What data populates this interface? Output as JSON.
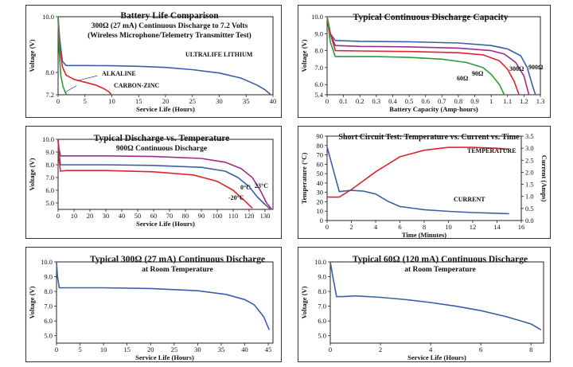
{
  "colors": {
    "blue": "#3a5fa8",
    "red": "#e0232c",
    "green": "#2f9a3a",
    "magenta": "#9b2c8c",
    "axis": "#222222"
  },
  "chart_data": [
    {
      "type": "line",
      "title": "Battery Life Comparison",
      "subtitle": "300Ω (27 mA) Continuous Discharge to 7.2 Volts",
      "subtitle2": "(Wireless Microphone/Telemetry Transmitter Test)",
      "xlabel": "Service Life (Hours)",
      "ylabel": "Voltage (V)",
      "xlim": [
        0,
        40
      ],
      "ylim": [
        7.2,
        10.0
      ],
      "xticks": [
        0,
        5,
        10,
        15,
        20,
        25,
        30,
        35,
        40
      ],
      "yticks": [
        7.2,
        8.0,
        10.0
      ],
      "series": [
        {
          "name": "ULTRALIFE LITHIUM",
          "color": "blue",
          "x": [
            0,
            0.3,
            0.8,
            1.5,
            5,
            10,
            15,
            20,
            25,
            30,
            34,
            37,
            38.5,
            39.5
          ],
          "y": [
            10.0,
            9.2,
            8.4,
            8.25,
            8.25,
            8.24,
            8.22,
            8.18,
            8.1,
            7.98,
            7.8,
            7.55,
            7.38,
            7.22
          ]
        },
        {
          "name": "ALKALINE",
          "color": "red",
          "x": [
            0,
            0.3,
            0.8,
            1.5,
            3,
            5,
            7,
            8.5,
            9.5,
            9.9
          ],
          "y": [
            9.9,
            8.9,
            8.2,
            7.9,
            7.75,
            7.65,
            7.55,
            7.42,
            7.3,
            7.2
          ]
        },
        {
          "name": "CARBON-ZINC",
          "color": "green",
          "x": [
            0,
            0.2,
            0.5,
            0.9,
            1.3,
            1.6
          ],
          "y": [
            10.0,
            8.7,
            7.9,
            7.5,
            7.3,
            7.2
          ]
        }
      ]
    },
    {
      "type": "line",
      "title": "Typical Continuous Discharge Capacity",
      "xlabel": "Battery Capacity (Amp-hours)",
      "ylabel": "Voltage (V)",
      "xlim": [
        0,
        1.3
      ],
      "ylim": [
        5.4,
        10.0
      ],
      "xticks": [
        0,
        0.1,
        0.2,
        0.3,
        0.4,
        0.5,
        0.6,
        0.7,
        0.8,
        0.9,
        1.0,
        1.1,
        1.2,
        1.3
      ],
      "yticks": [
        5.4,
        6.0,
        7.0,
        8.0,
        9.0,
        10.0
      ],
      "series": [
        {
          "name": "900Ω",
          "color": "blue",
          "x": [
            0,
            0.02,
            0.05,
            0.2,
            0.5,
            0.8,
            1.0,
            1.1,
            1.18,
            1.22,
            1.25,
            1.27
          ],
          "y": [
            10.0,
            9.0,
            8.6,
            8.55,
            8.52,
            8.45,
            8.3,
            8.1,
            7.7,
            7.0,
            6.0,
            5.4
          ]
        },
        {
          "name": "300Ω",
          "color": "magenta",
          "x": [
            0,
            0.02,
            0.05,
            0.2,
            0.5,
            0.8,
            1.0,
            1.08,
            1.15,
            1.2,
            1.23
          ],
          "y": [
            10.0,
            9.0,
            8.3,
            8.25,
            8.22,
            8.15,
            8.0,
            7.8,
            7.3,
            6.5,
            5.4
          ]
        },
        {
          "name": "90Ω",
          "color": "red",
          "x": [
            0,
            0.02,
            0.05,
            0.2,
            0.5,
            0.8,
            0.95,
            1.05,
            1.1,
            1.14,
            1.17
          ],
          "y": [
            10.0,
            9.0,
            8.0,
            7.98,
            7.95,
            7.88,
            7.75,
            7.4,
            6.9,
            6.2,
            5.4
          ]
        },
        {
          "name": "60Ω",
          "color": "green",
          "x": [
            0,
            0.02,
            0.05,
            0.3,
            0.5,
            0.7,
            0.85,
            0.95,
            1.0,
            1.05,
            1.08
          ],
          "y": [
            10.0,
            8.5,
            7.65,
            7.65,
            7.6,
            7.5,
            7.3,
            7.0,
            6.6,
            6.0,
            5.4
          ]
        }
      ]
    },
    {
      "type": "line",
      "title": "Typical Discharge vs. Temperature",
      "subtitle": "900Ω Continuous Discharge",
      "xlabel": "Service Life (Hours)",
      "ylabel": "Voltage (V)",
      "xlim": [
        0,
        135
      ],
      "ylim": [
        4.5,
        10.0
      ],
      "xticks": [
        0,
        10,
        20,
        30,
        40,
        50,
        60,
        70,
        80,
        90,
        100,
        110,
        120,
        130
      ],
      "yticks": [
        5.0,
        6.0,
        7.0,
        8.0,
        9.0,
        10.0
      ],
      "series": [
        {
          "name": "23°C",
          "color": "magenta",
          "x": [
            0,
            0.5,
            1.5,
            5,
            30,
            60,
            90,
            105,
            115,
            122,
            127,
            131,
            134
          ],
          "y": [
            10.0,
            9.3,
            8.7,
            8.7,
            8.7,
            8.65,
            8.5,
            8.2,
            7.7,
            7.0,
            6.0,
            5.0,
            4.55
          ]
        },
        {
          "name": "0°C",
          "color": "blue",
          "x": [
            0,
            0.5,
            1.5,
            5,
            30,
            60,
            90,
            105,
            113,
            120,
            125,
            129,
            133
          ],
          "y": [
            10.0,
            9.0,
            8.0,
            8.0,
            8.0,
            7.95,
            7.8,
            7.5,
            7.0,
            6.3,
            5.5,
            5.0,
            4.55
          ]
        },
        {
          "name": "-20°C",
          "color": "red",
          "x": [
            0,
            0.5,
            1.5,
            5,
            30,
            60,
            85,
            100,
            110,
            117,
            122
          ],
          "y": [
            10.0,
            8.5,
            7.5,
            7.55,
            7.55,
            7.45,
            7.2,
            6.7,
            6.0,
            5.2,
            4.6
          ]
        }
      ]
    },
    {
      "type": "line",
      "title": "Short Circuit Test: Temperature vs. Current vs. Time",
      "xlabel": "Time (Minutes)",
      "ylabel": "Temperature (°C)",
      "ylabel2": "Current (Amps)",
      "xlim": [
        0,
        16
      ],
      "ylim": [
        0,
        90
      ],
      "y2lim": [
        0,
        3.5
      ],
      "xticks": [
        0,
        2,
        4,
        6,
        8,
        10,
        12,
        14,
        16
      ],
      "yticks": [
        0,
        10,
        20,
        30,
        40,
        50,
        60,
        70,
        80,
        90
      ],
      "y2ticks": [
        0,
        0.5,
        1.0,
        1.5,
        2.0,
        2.5,
        3.0,
        3.5
      ],
      "series": [
        {
          "name": "TEMPERATURE",
          "color": "red",
          "axis": "left",
          "x": [
            0,
            1,
            2,
            4,
            6,
            8,
            10,
            12,
            14,
            15
          ],
          "y": [
            25,
            25,
            33,
            52,
            68,
            75,
            78,
            78,
            77,
            76
          ]
        },
        {
          "name": "CURRENT",
          "color": "blue",
          "axis": "right",
          "x": [
            0,
            1,
            2,
            3,
            4,
            5,
            6,
            8,
            10,
            12,
            14,
            15
          ],
          "y": [
            3.05,
            1.2,
            1.25,
            1.22,
            1.1,
            0.8,
            0.58,
            0.45,
            0.38,
            0.33,
            0.3,
            0.28
          ]
        }
      ]
    },
    {
      "type": "line",
      "title": "Typical 300Ω (27 mA) Continuous Discharge",
      "subtitle": "at Room Temperature",
      "xlabel": "Service Life (Hours)",
      "ylabel": "Voltage (V)",
      "xlim": [
        0,
        46
      ],
      "ylim": [
        4.5,
        10.0
      ],
      "xticks": [
        0,
        5,
        10,
        15,
        20,
        25,
        30,
        35,
        40,
        45
      ],
      "yticks": [
        5.0,
        6.0,
        7.0,
        8.0,
        9.0,
        10.0
      ],
      "series": [
        {
          "name": "",
          "color": "blue",
          "x": [
            0,
            0.2,
            0.6,
            2,
            10,
            20,
            30,
            36,
            40,
            42,
            44,
            45.2
          ],
          "y": [
            10.0,
            9.0,
            8.25,
            8.25,
            8.25,
            8.2,
            8.05,
            7.8,
            7.45,
            7.1,
            6.3,
            5.4
          ]
        }
      ]
    },
    {
      "type": "line",
      "title": "Typical 60Ω (120 mA) Continuous Discharge",
      "subtitle": "at Room Temperature",
      "xlabel": "Service Life (Hours)",
      "ylabel": "Voltage (V)",
      "xlim": [
        0,
        8.5
      ],
      "ylim": [
        4.5,
        10.0
      ],
      "xticks": [
        0,
        2,
        4,
        6,
        8
      ],
      "yticks": [
        5.0,
        6.0,
        7.0,
        8.0,
        9.0,
        10.0
      ],
      "series": [
        {
          "name": "",
          "color": "blue",
          "x": [
            0,
            0.1,
            0.25,
            0.5,
            1,
            2,
            3,
            4,
            5,
            6,
            7,
            8,
            8.4
          ],
          "y": [
            10.0,
            9.0,
            7.65,
            7.65,
            7.7,
            7.6,
            7.45,
            7.25,
            7.0,
            6.7,
            6.3,
            5.8,
            5.4
          ]
        }
      ]
    }
  ]
}
